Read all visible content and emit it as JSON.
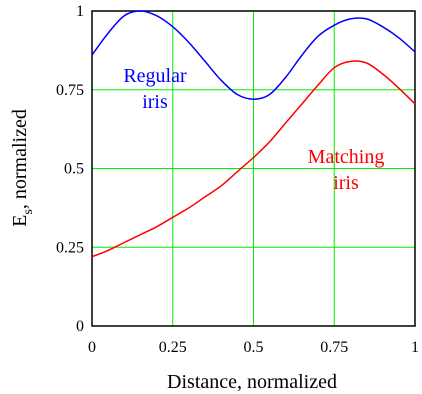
{
  "chart_data": {
    "type": "line",
    "xlabel": "Distance, normalized",
    "ylabel_main": "E",
    "ylabel_sub": "s",
    "ylabel_rest": ",  normalized",
    "xlim": [
      0,
      1
    ],
    "ylim": [
      0,
      1
    ],
    "xticks": [
      0,
      0.25,
      0.5,
      0.75,
      1
    ],
    "yticks": [
      0,
      0.25,
      0.5,
      0.75,
      1
    ],
    "xtick_labels": [
      "0",
      "0.25",
      "0.5",
      "0.75",
      "1"
    ],
    "ytick_labels": [
      "0",
      "0.25",
      "0.5",
      "0.75",
      "1"
    ],
    "grid": true,
    "colors": {
      "grid": "#00ee00",
      "frame": "#000000",
      "regular": "#0000ff",
      "matching": "#ff0000"
    },
    "series": [
      {
        "id": "regular",
        "x": [
          0,
          0.05,
          0.1,
          0.15,
          0.2,
          0.25,
          0.3,
          0.35,
          0.4,
          0.45,
          0.5,
          0.55,
          0.6,
          0.65,
          0.7,
          0.75,
          0.8,
          0.85,
          0.9,
          0.95,
          1
        ],
        "y": [
          0.86,
          0.93,
          0.985,
          1.0,
          0.985,
          0.95,
          0.9,
          0.84,
          0.78,
          0.735,
          0.72,
          0.735,
          0.79,
          0.86,
          0.92,
          0.955,
          0.975,
          0.975,
          0.95,
          0.915,
          0.87
        ]
      },
      {
        "id": "matching",
        "x": [
          0,
          0.05,
          0.1,
          0.15,
          0.2,
          0.25,
          0.3,
          0.35,
          0.4,
          0.45,
          0.5,
          0.55,
          0.6,
          0.65,
          0.7,
          0.75,
          0.8,
          0.85,
          0.9,
          0.95,
          1
        ],
        "y": [
          0.22,
          0.24,
          0.265,
          0.29,
          0.315,
          0.345,
          0.375,
          0.41,
          0.445,
          0.49,
          0.535,
          0.585,
          0.645,
          0.705,
          0.765,
          0.82,
          0.84,
          0.835,
          0.8,
          0.755,
          0.705
        ]
      }
    ],
    "annotations": [
      {
        "id": "regular",
        "lines": [
          "Regular",
          "iris"
        ]
      },
      {
        "id": "matching",
        "lines": [
          "Matching",
          "iris"
        ]
      }
    ]
  }
}
